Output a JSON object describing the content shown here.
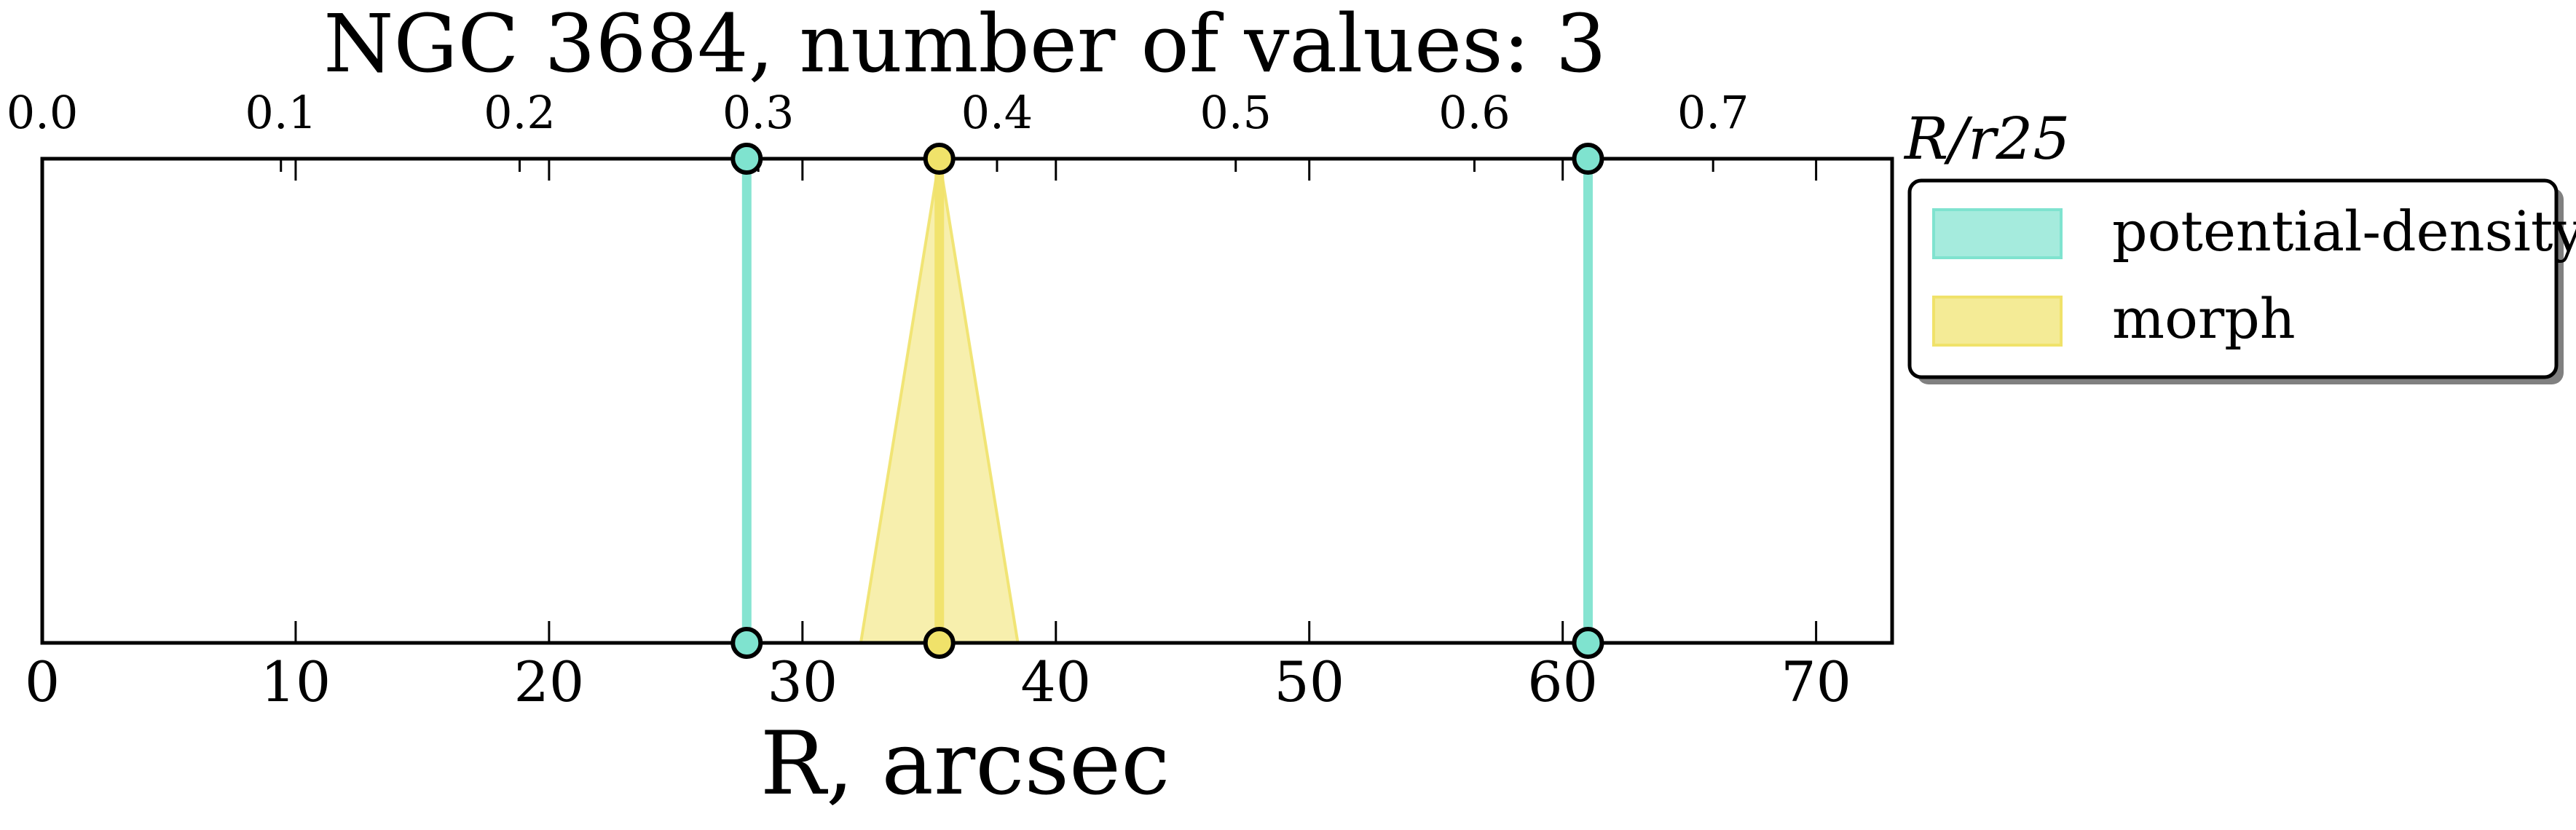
{
  "chart_data": {
    "type": "line",
    "title": "NGC 3684, number of values: 3",
    "xlabel": "R, arcsec",
    "x2label": "R/r25",
    "xlim": [
      0,
      73
    ],
    "x_ticks": [
      0,
      10,
      20,
      30,
      40,
      50,
      60,
      70
    ],
    "x2lim": [
      0,
      0.775
    ],
    "x2_ticks": [
      "0.0",
      "0.1",
      "0.2",
      "0.3",
      "0.4",
      "0.5",
      "0.6",
      "0.7"
    ],
    "grid": false,
    "legend_position": "outside-right",
    "series": [
      {
        "name": "potential-density",
        "color": "#7fe3cf",
        "kind": "vertical-line",
        "x": [
          27.8,
          61.0
        ]
      },
      {
        "name": "morph",
        "color": "#f0e26a",
        "kind": "vertical-line-with-error",
        "x": [
          35.4
        ],
        "error_low": [
          32.3
        ],
        "error_high": [
          38.5
        ]
      }
    ]
  }
}
